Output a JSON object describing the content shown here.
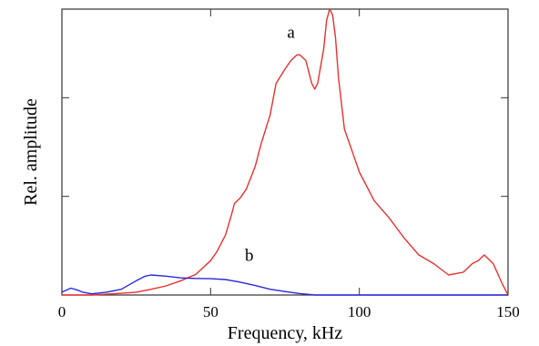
{
  "chart_data": {
    "type": "line",
    "xlabel": "Frequency, kHz",
    "ylabel": "Rel. amplitude",
    "xlim": [
      0,
      150
    ],
    "ylim": [
      0,
      1
    ],
    "x_ticks": [
      0,
      50,
      100,
      150
    ],
    "x_tick_labels": [
      "0",
      "50",
      "100",
      "150"
    ],
    "y_ticks": [
      0.345,
      0.69
    ],
    "y_tick_labels": [
      "",
      ""
    ],
    "grid": false,
    "annotations": [
      {
        "text": "a",
        "x": 77,
        "y": 0.9
      },
      {
        "text": "b",
        "x": 63,
        "y": 0.12
      }
    ],
    "series": [
      {
        "label": "a",
        "color": "#e8312f",
        "x": [
          0,
          5,
          10,
          15,
          20,
          25,
          30,
          35,
          40,
          45,
          50,
          52,
          55,
          57,
          58,
          60,
          62,
          65,
          67,
          70,
          72,
          75,
          77,
          79,
          80,
          82,
          84,
          85,
          86,
          88,
          89,
          90,
          91,
          92,
          93,
          95,
          97,
          100,
          105,
          110,
          115,
          120,
          125,
          130,
          135,
          138,
          140,
          142,
          145,
          148,
          150
        ],
        "y": [
          0.0,
          0.0,
          0.0,
          0.003,
          0.006,
          0.01,
          0.02,
          0.032,
          0.05,
          0.072,
          0.12,
          0.15,
          0.21,
          0.28,
          0.32,
          0.34,
          0.37,
          0.45,
          0.53,
          0.63,
          0.74,
          0.79,
          0.82,
          0.84,
          0.84,
          0.82,
          0.74,
          0.72,
          0.74,
          0.86,
          0.96,
          1.0,
          0.98,
          0.9,
          0.76,
          0.58,
          0.52,
          0.43,
          0.33,
          0.27,
          0.2,
          0.14,
          0.11,
          0.07,
          0.08,
          0.11,
          0.12,
          0.14,
          0.11,
          0.04,
          0.0
        ]
      },
      {
        "label": "b",
        "color": "#2929d8",
        "x": [
          0,
          3,
          5,
          7,
          10,
          15,
          20,
          25,
          28,
          30,
          35,
          40,
          45,
          50,
          55,
          60,
          65,
          70,
          75,
          80,
          85,
          90,
          100,
          110,
          120,
          130,
          140,
          150
        ],
        "y": [
          0.01,
          0.024,
          0.018,
          0.01,
          0.004,
          0.01,
          0.02,
          0.05,
          0.066,
          0.07,
          0.066,
          0.06,
          0.058,
          0.057,
          0.054,
          0.045,
          0.033,
          0.02,
          0.012,
          0.005,
          0.0,
          0.0,
          0.0,
          0.0,
          0.0,
          0.0,
          0.0,
          0.0
        ]
      }
    ]
  }
}
